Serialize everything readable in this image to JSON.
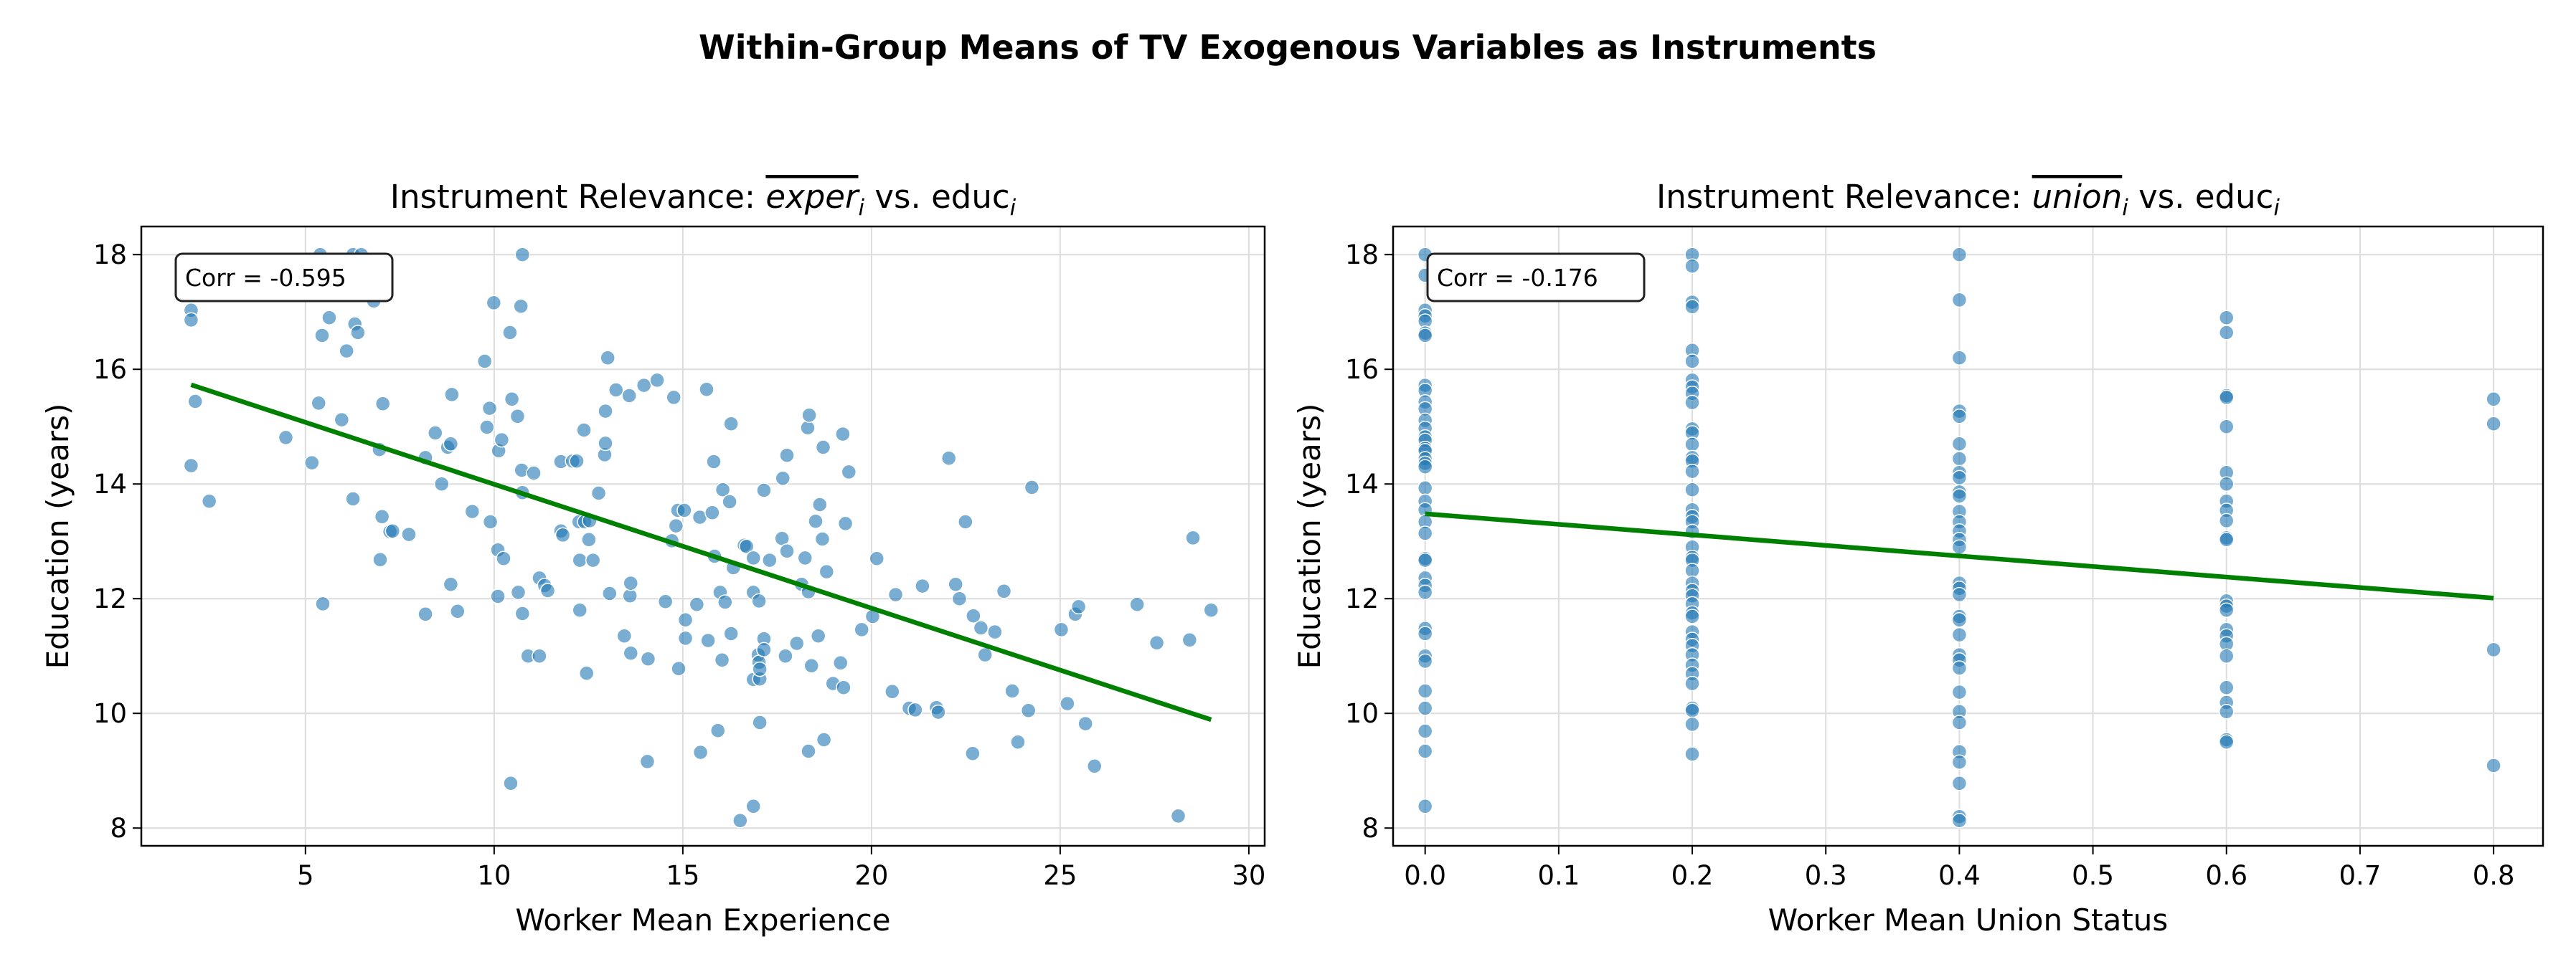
{
  "figure": {
    "suptitle": "Within-Group Means of TV Exogenous Variables as Instruments"
  },
  "colors": {
    "points": "#1f77b4",
    "fit_line": "#008000",
    "grid": "#dcdcdc"
  },
  "chart_data": [
    {
      "type": "scatter",
      "title": {
        "prefix": "Instrument Relevance: ",
        "var": "exper",
        "var_sub": "i",
        "mid": " vs. educ",
        "mid_sub": "i"
      },
      "xlabel": "Worker Mean Experience",
      "ylabel": "Education (years)",
      "xlim": [
        0.65,
        30.42
      ],
      "ylim": [
        7.69,
        18.49
      ],
      "xticks": [
        5,
        10,
        15,
        20,
        25,
        30
      ],
      "xtick_labels": [
        "5",
        "10",
        "15",
        "20",
        "25",
        "30"
      ],
      "yticks": [
        8,
        10,
        12,
        14,
        16,
        18
      ],
      "ytick_labels": [
        "8",
        "10",
        "12",
        "14",
        "16",
        "18"
      ],
      "grid": true,
      "annotation": "Corr = -0.595",
      "fit_line": {
        "x": [
          1.97,
          29.0
        ],
        "y": [
          15.73,
          9.89
        ]
      },
      "points": [
        [
          1.97,
          17.03
        ],
        [
          1.97,
          16.86
        ],
        [
          1.97,
          14.32
        ],
        [
          2.08,
          15.44
        ],
        [
          2.45,
          13.7
        ],
        [
          4.35,
          17.82
        ],
        [
          4.8,
          17.64
        ],
        [
          5.39,
          18
        ],
        [
          6.26,
          18
        ],
        [
          6.48,
          18
        ],
        [
          4.48,
          14.81
        ],
        [
          5.17,
          14.37
        ],
        [
          5.35,
          15.41
        ],
        [
          5.44,
          16.59
        ],
        [
          5.46,
          11.91
        ],
        [
          5.63,
          16.9
        ],
        [
          5.96,
          15.12
        ],
        [
          6.09,
          16.32
        ],
        [
          6.26,
          13.74
        ],
        [
          6.31,
          16.79
        ],
        [
          6.39,
          16.64
        ],
        [
          6.81,
          17.19
        ],
        [
          6.96,
          14.6
        ],
        [
          6.98,
          12.68
        ],
        [
          7.03,
          13.43
        ],
        [
          7.05,
          15.4
        ],
        [
          7.24,
          13.17
        ],
        [
          7.31,
          13.18
        ],
        [
          7.74,
          13.12
        ],
        [
          8.18,
          14.46
        ],
        [
          8.18,
          11.73
        ],
        [
          8.44,
          14.89
        ],
        [
          8.61,
          14.0
        ],
        [
          8.77,
          14.64
        ],
        [
          8.85,
          14.7
        ],
        [
          8.85,
          12.25
        ],
        [
          8.88,
          15.56
        ],
        [
          9.03,
          11.78
        ],
        [
          9.42,
          13.52
        ],
        [
          9.75,
          16.14
        ],
        [
          9.81,
          14.99
        ],
        [
          9.88,
          15.32
        ],
        [
          9.9,
          13.34
        ],
        [
          9.99,
          17.16
        ],
        [
          10.1,
          12.85
        ],
        [
          10.1,
          12.04
        ],
        [
          10.12,
          14.58
        ],
        [
          10.2,
          14.77
        ],
        [
          10.25,
          12.7
        ],
        [
          10.42,
          16.64
        ],
        [
          10.44,
          8.78
        ],
        [
          10.47,
          15.48
        ],
        [
          10.62,
          15.18
        ],
        [
          10.64,
          12.11
        ],
        [
          10.71,
          17.1
        ],
        [
          10.73,
          14.24
        ],
        [
          10.75,
          18
        ],
        [
          10.75,
          13.85
        ],
        [
          10.75,
          11.74
        ],
        [
          10.9,
          11.0
        ],
        [
          11.05,
          14.19
        ],
        [
          11.2,
          12.36
        ],
        [
          11.2,
          11.0
        ],
        [
          11.34,
          12.23
        ],
        [
          11.42,
          12.14
        ],
        [
          11.77,
          14.39
        ],
        [
          11.77,
          13.18
        ],
        [
          11.82,
          13.11
        ],
        [
          12.08,
          14.4
        ],
        [
          12.19,
          14.4
        ],
        [
          12.25,
          13.34
        ],
        [
          12.27,
          12.67
        ],
        [
          12.27,
          11.8
        ],
        [
          12.38,
          14.94
        ],
        [
          12.4,
          13.34
        ],
        [
          12.45,
          10.7
        ],
        [
          12.51,
          13.03
        ],
        [
          12.53,
          13.36
        ],
        [
          12.62,
          12.67
        ],
        [
          12.77,
          13.84
        ],
        [
          12.93,
          14.51
        ],
        [
          12.95,
          15.27
        ],
        [
          12.95,
          14.71
        ],
        [
          13.01,
          16.2
        ],
        [
          13.06,
          12.09
        ],
        [
          13.23,
          15.64
        ],
        [
          13.45,
          11.35
        ],
        [
          13.58,
          15.54
        ],
        [
          13.6,
          12.05
        ],
        [
          13.62,
          12.27
        ],
        [
          13.62,
          11.05
        ],
        [
          13.97,
          15.72
        ],
        [
          14.06,
          9.16
        ],
        [
          14.08,
          10.95
        ],
        [
          14.32,
          15.81
        ],
        [
          14.54,
          11.95
        ],
        [
          14.71,
          13.01
        ],
        [
          14.76,
          15.51
        ],
        [
          14.82,
          13.27
        ],
        [
          14.87,
          13.54
        ],
        [
          14.89,
          10.78
        ],
        [
          15.04,
          13.54
        ],
        [
          15.07,
          11.63
        ],
        [
          15.07,
          11.31
        ],
        [
          15.37,
          11.9
        ],
        [
          15.45,
          13.42
        ],
        [
          15.47,
          9.32
        ],
        [
          15.63,
          15.65
        ],
        [
          15.67,
          11.27
        ],
        [
          15.78,
          13.5
        ],
        [
          15.82,
          14.39
        ],
        [
          15.84,
          12.74
        ],
        [
          15.93,
          9.7
        ],
        [
          15.99,
          12.11
        ],
        [
          16.04,
          10.93
        ],
        [
          16.06,
          13.9
        ],
        [
          16.12,
          11.94
        ],
        [
          16.24,
          13.69
        ],
        [
          16.28,
          15.05
        ],
        [
          16.28,
          11.39
        ],
        [
          16.34,
          12.54
        ],
        [
          16.52,
          8.13
        ],
        [
          16.63,
          12.93
        ],
        [
          16.69,
          12.91
        ],
        [
          16.87,
          10.59
        ],
        [
          16.87,
          12.71
        ],
        [
          16.87,
          8.38
        ],
        [
          16.87,
          12.11
        ],
        [
          17.0,
          11.02
        ],
        [
          17.02,
          11.96
        ],
        [
          17.02,
          10.89
        ],
        [
          17.04,
          9.84
        ],
        [
          17.04,
          10.6
        ],
        [
          17.04,
          10.77
        ],
        [
          17.15,
          13.89
        ],
        [
          17.15,
          11.3
        ],
        [
          17.15,
          11.11
        ],
        [
          17.3,
          12.67
        ],
        [
          17.63,
          13.05
        ],
        [
          17.65,
          14.1
        ],
        [
          17.72,
          11.0
        ],
        [
          17.76,
          14.5
        ],
        [
          17.76,
          12.83
        ],
        [
          18.02,
          11.22
        ],
        [
          18.15,
          12.25
        ],
        [
          18.24,
          12.71
        ],
        [
          18.31,
          14.98
        ],
        [
          18.33,
          9.34
        ],
        [
          18.33,
          12.12
        ],
        [
          18.35,
          15.2
        ],
        [
          18.41,
          10.83
        ],
        [
          18.52,
          13.35
        ],
        [
          18.59,
          11.35
        ],
        [
          18.63,
          13.64
        ],
        [
          18.7,
          13.04
        ],
        [
          18.72,
          14.64
        ],
        [
          18.74,
          9.54
        ],
        [
          18.81,
          12.47
        ],
        [
          18.98,
          10.52
        ],
        [
          19.18,
          10.88
        ],
        [
          19.24,
          14.87
        ],
        [
          19.26,
          10.45
        ],
        [
          19.31,
          13.31
        ],
        [
          19.4,
          14.21
        ],
        [
          19.74,
          11.46
        ],
        [
          20.03,
          11.69
        ],
        [
          20.14,
          12.7
        ],
        [
          20.55,
          10.38
        ],
        [
          20.64,
          12.07
        ],
        [
          21.0,
          10.09
        ],
        [
          21.16,
          10.06
        ],
        [
          21.35,
          12.22
        ],
        [
          21.72,
          10.1
        ],
        [
          21.77,
          10.02
        ],
        [
          22.05,
          14.45
        ],
        [
          22.23,
          12.25
        ],
        [
          22.33,
          12.0
        ],
        [
          22.49,
          13.34
        ],
        [
          22.68,
          9.3
        ],
        [
          22.7,
          11.7
        ],
        [
          22.9,
          11.49
        ],
        [
          23.01,
          11.02
        ],
        [
          23.27,
          11.42
        ],
        [
          23.51,
          12.13
        ],
        [
          23.73,
          10.39
        ],
        [
          23.88,
          9.5
        ],
        [
          24.16,
          10.05
        ],
        [
          24.25,
          13.94
        ],
        [
          25.03,
          11.46
        ],
        [
          25.19,
          10.17
        ],
        [
          25.4,
          11.73
        ],
        [
          25.49,
          11.86
        ],
        [
          25.67,
          9.82
        ],
        [
          25.91,
          9.08
        ],
        [
          27.04,
          11.9
        ],
        [
          27.56,
          11.23
        ],
        [
          28.13,
          8.21
        ],
        [
          28.43,
          11.28
        ],
        [
          28.52,
          13.06
        ],
        [
          29.0,
          11.8
        ]
      ]
    },
    {
      "type": "scatter",
      "title": {
        "prefix": "Instrument Relevance: ",
        "var": "union",
        "var_sub": "i",
        "mid": " vs. educ",
        "mid_sub": "i"
      },
      "xlabel": "Worker Mean Union Status",
      "ylabel": "Education (years)",
      "xlim": [
        -0.024,
        0.837
      ],
      "ylim": [
        7.69,
        18.49
      ],
      "xticks": [
        0.0,
        0.1,
        0.2,
        0.3,
        0.4,
        0.5,
        0.6,
        0.7,
        0.8
      ],
      "xtick_labels": [
        "0.0",
        "0.1",
        "0.2",
        "0.3",
        "0.4",
        "0.5",
        "0.6",
        "0.7",
        "0.8"
      ],
      "yticks": [
        8,
        10,
        12,
        14,
        16,
        18
      ],
      "ytick_labels": [
        "8",
        "10",
        "12",
        "14",
        "16",
        "18"
      ],
      "grid": true,
      "annotation": "Corr = -0.176",
      "fit_line": {
        "x": [
          0.0,
          0.8
        ],
        "y": [
          13.48,
          12.01
        ]
      },
      "columns": [
        {
          "x": 0.0,
          "y": [
            18,
            17.64,
            17.03,
            16.93,
            16.84,
            16.63,
            16.59,
            15.72,
            15.63,
            15.43,
            15.31,
            15.11,
            14.97,
            14.82,
            14.76,
            14.62,
            14.58,
            14.44,
            14.36,
            14.3,
            13.93,
            13.7,
            13.55,
            13.34,
            13.14,
            12.7,
            12.67,
            12.36,
            12.23,
            12.11,
            11.48,
            11.39,
            11.0,
            10.91,
            10.39,
            10.09,
            9.69,
            9.34,
            8.38
          ]
        },
        {
          "x": 0.2,
          "y": [
            18,
            17.8,
            17.17,
            17.09,
            16.33,
            16.14,
            15.81,
            15.69,
            15.58,
            15.42,
            14.96,
            14.89,
            14.69,
            14.46,
            14.4,
            14.22,
            13.9,
            13.55,
            13.43,
            13.34,
            13.17,
            12.9,
            12.72,
            12.67,
            12.49,
            12.27,
            12.14,
            12.05,
            11.91,
            11.75,
            11.69,
            11.42,
            11.29,
            11.18,
            11.02,
            10.84,
            10.69,
            10.52,
            10.09,
            10.05,
            9.81,
            9.29
          ]
        },
        {
          "x": 0.4,
          "y": [
            18,
            17.21,
            16.2,
            15.27,
            15.18,
            14.7,
            14.44,
            14.2,
            14.11,
            13.86,
            13.79,
            13.52,
            13.34,
            13.18,
            13.03,
            12.9,
            12.27,
            12.18,
            12.07,
            11.69,
            11.63,
            11.37,
            11.02,
            10.93,
            10.79,
            10.37,
            10.03,
            9.84,
            9.33,
            9.15,
            8.78,
            8.2,
            8.13
          ]
        },
        {
          "x": 0.6,
          "y": [
            16.9,
            16.64,
            15.54,
            15.51,
            15.0,
            14.2,
            14.0,
            13.7,
            13.54,
            13.36,
            13.06,
            13.03,
            11.96,
            11.87,
            11.8,
            11.46,
            11.35,
            11.21,
            11.0,
            10.45,
            10.19,
            10.03,
            9.54,
            9.5
          ]
        },
        {
          "x": 0.8,
          "y": [
            15.48,
            15.05,
            11.11,
            9.09
          ]
        }
      ]
    }
  ]
}
